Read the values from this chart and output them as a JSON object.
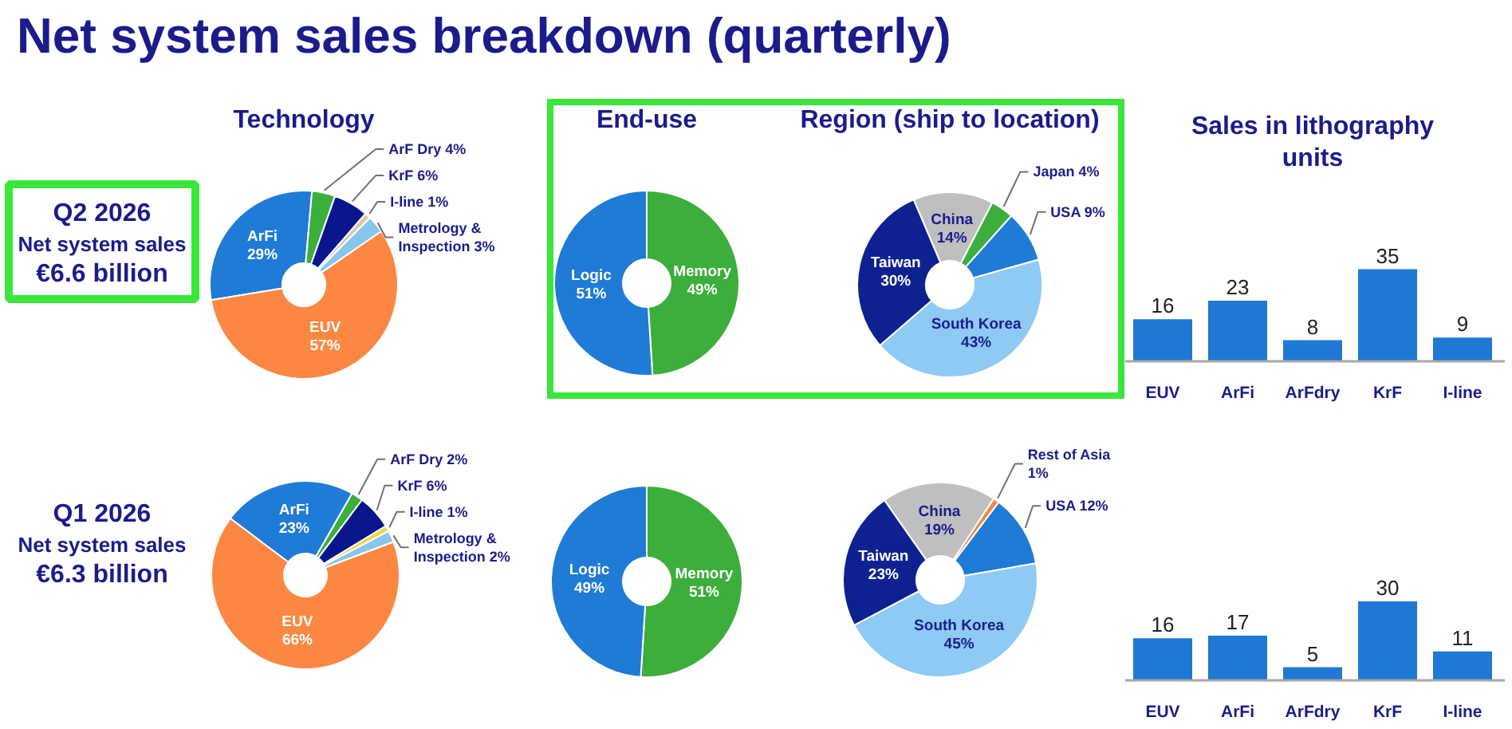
{
  "chart_data": [
    {
      "type": "other",
      "title": "Net system sales breakdown (quarterly)"
    },
    {
      "type": "other",
      "annotations": [
        "Q2 2026",
        "Net system sales",
        "€6.6 billion"
      ]
    },
    {
      "type": "donut",
      "title": "Technology",
      "categories": [
        "ArFi",
        "ArF Dry",
        "KrF",
        "I-line",
        "Metrology & Inspection",
        "EUV"
      ],
      "values": [
        29,
        4,
        6,
        1,
        3,
        57
      ],
      "colors": [
        "#1f7bd6",
        "#3cae3c",
        "#0b168c",
        "#d9cba0",
        "#86c5ee",
        "#fb8743"
      ],
      "value_labels": [
        "29%",
        "4%",
        "6%",
        "1%",
        "3%",
        "57%"
      ]
    },
    {
      "type": "donut",
      "title": "End-use",
      "categories": [
        "Memory",
        "Logic"
      ],
      "values": [
        49,
        51
      ],
      "colors": [
        "#3cae3c",
        "#1f7bd6"
      ],
      "value_labels": [
        "49%",
        "51%"
      ]
    },
    {
      "type": "donut",
      "title": "Region (ship to location)",
      "categories": [
        "China",
        "Japan",
        "USA",
        "South Korea",
        "Taiwan"
      ],
      "values": [
        14,
        4,
        9,
        43,
        30
      ],
      "colors": [
        "#bfbfbf",
        "#3cae3c",
        "#1f7bd6",
        "#8ecaf4",
        "#0e2190"
      ],
      "value_labels": [
        "14%",
        "4%",
        "9%",
        "43%",
        "30%"
      ]
    },
    {
      "type": "bar",
      "title": "Sales in lithography units",
      "categories": [
        "EUV",
        "ArFi",
        "ArFdry",
        "KrF",
        "I-line"
      ],
      "values": [
        16,
        23,
        8,
        35,
        9
      ],
      "color": "#1f78d4",
      "data_labels": true,
      "tick_labels": "x"
    },
    {
      "type": "other",
      "annotations": [
        "Q1 2026",
        "Net system sales",
        "€6.3 billion"
      ]
    },
    {
      "type": "donut",
      "categories": [
        "ArFi",
        "ArF Dry",
        "KrF",
        "I-line",
        "Metrology & Inspection",
        "EUV"
      ],
      "values": [
        23,
        2,
        6,
        1,
        2,
        66
      ],
      "colors": [
        "#1f7bd6",
        "#3cae3c",
        "#0b168c",
        "#f2d541",
        "#86c5ee",
        "#fb8743"
      ],
      "value_labels": [
        "23%",
        "2%",
        "6%",
        "1%",
        "2%",
        "66%"
      ]
    },
    {
      "type": "donut",
      "categories": [
        "Memory",
        "Logic"
      ],
      "values": [
        51,
        49
      ],
      "colors": [
        "#3cae3c",
        "#1f7bd6"
      ],
      "value_labels": [
        "51%",
        "49%"
      ]
    },
    {
      "type": "donut",
      "categories": [
        "China",
        "Rest of Asia",
        "USA",
        "South Korea",
        "Taiwan"
      ],
      "values": [
        19,
        1,
        12,
        45,
        23
      ],
      "colors": [
        "#bfbfbf",
        "#f0884a",
        "#1f7bd6",
        "#8ecaf4",
        "#0e2190"
      ],
      "value_labels": [
        "19%",
        "1%",
        "12%",
        "45%",
        "23%"
      ]
    },
    {
      "type": "bar",
      "categories": [
        "EUV",
        "ArFi",
        "ArFdry",
        "KrF",
        "I-line"
      ],
      "values": [
        16,
        17,
        5,
        30,
        11
      ],
      "color": "#1f78d4",
      "data_labels": true,
      "tick_labels": "x"
    }
  ]
}
